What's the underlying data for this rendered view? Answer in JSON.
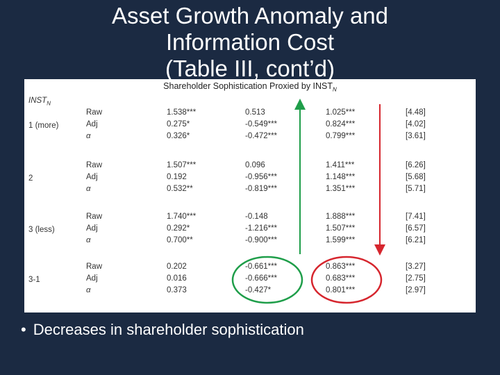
{
  "slide": {
    "title_line1": "Asset Growth Anomaly and",
    "title_line2": "Information Cost",
    "title_line3": "(Table III, cont’d)",
    "bullet": "Decreases in shareholder sophistication",
    "bullet_symbol": "•"
  },
  "table": {
    "caption_main": "Shareholder Sophistication Proxied by INST",
    "caption_sub": "N",
    "group_label_main": "INST",
    "group_label_sub": "N",
    "rows": [
      {
        "label": "1 (more)",
        "types": [
          "Raw",
          "Adj",
          "α"
        ],
        "c1": [
          "1.538***",
          "0.275*",
          "0.326*"
        ],
        "c2": [
          "0.513",
          "-0.549***",
          "-0.472***"
        ],
        "c3": [
          "1.025***",
          "0.824***",
          "0.799***"
        ],
        "c4": [
          "[4.48]",
          "[4.02]",
          "[3.61]"
        ]
      },
      {
        "label": "2",
        "types": [
          "Raw",
          "Adj",
          "α"
        ],
        "c1": [
          "1.507***",
          "0.192",
          "0.532**"
        ],
        "c2": [
          "0.096",
          "-0.956***",
          "-0.819***"
        ],
        "c3": [
          "1.411***",
          "1.148***",
          "1.351***"
        ],
        "c4": [
          "[6.26]",
          "[5.68]",
          "[5.71]"
        ]
      },
      {
        "label": "3 (less)",
        "types": [
          "Raw",
          "Adj",
          "α"
        ],
        "c1": [
          "1.740***",
          "0.292*",
          "0.700**"
        ],
        "c2": [
          "-0.148",
          "-1.216***",
          "-0.900***"
        ],
        "c3": [
          "1.888***",
          "1.507***",
          "1.599***"
        ],
        "c4": [
          "[7.41]",
          "[6.57]",
          "[6.21]"
        ]
      },
      {
        "label": "3-1",
        "types": [
          "Raw",
          "Adj",
          "α"
        ],
        "c1": [
          "0.202",
          "0.016",
          "0.373"
        ],
        "c2": [
          "-0.661***",
          "-0.666***",
          "-0.427*"
        ],
        "c3": [
          "0.863***",
          "0.683***",
          "0.801***"
        ],
        "c4": [
          "[3.27]",
          "[2.75]",
          "[2.97]"
        ]
      }
    ]
  },
  "annotations": {
    "green_color": "#1f9e4a",
    "red_color": "#d6262e"
  }
}
